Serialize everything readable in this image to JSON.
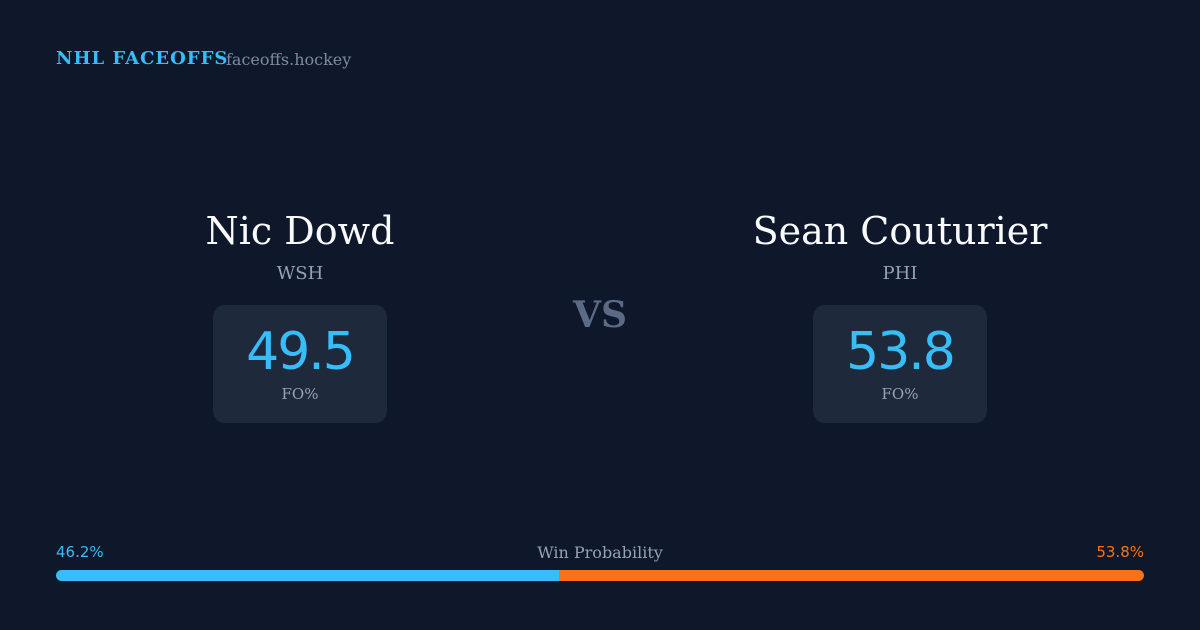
{
  "header": {
    "title": "NHL FACEOFFS",
    "site": "faceoffs.hockey"
  },
  "players": [
    {
      "name": "Nic Dowd",
      "team": "WSH",
      "stat": 49.5,
      "stat_label": "FO%"
    },
    {
      "name": "Sean Couturier",
      "team": "PHI",
      "stat": 53.8,
      "stat_label": "FO%"
    }
  ],
  "versus": "VS",
  "win_probability": {
    "title": "Win Probability",
    "left": {
      "value": 46.2,
      "label": "46.2%",
      "color": "#38bdf8"
    },
    "right": {
      "value": 53.8,
      "label": "53.8%",
      "color": "#f97316"
    }
  }
}
